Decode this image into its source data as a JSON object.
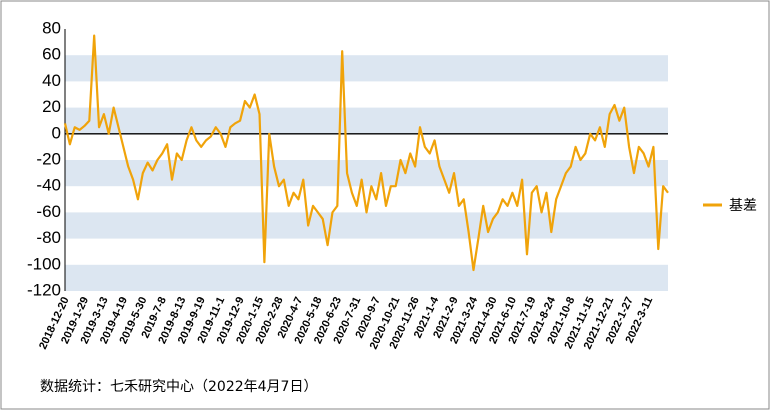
{
  "chart_data": {
    "type": "line",
    "categories": [
      "2018-12-20",
      null,
      null,
      null,
      "2019-1-29",
      null,
      null,
      null,
      "2019-3-13",
      null,
      null,
      null,
      "2019-4-19",
      null,
      null,
      null,
      "2019-5-30",
      null,
      null,
      null,
      "2019-7-8",
      null,
      null,
      null,
      "2019-8-13",
      null,
      null,
      null,
      "2019-9-19",
      null,
      null,
      null,
      "2019-11-1",
      null,
      null,
      null,
      "2019-12-9",
      null,
      null,
      null,
      "2020-1-15",
      null,
      null,
      null,
      "2020-2-28",
      null,
      null,
      null,
      "2020-4-7",
      null,
      null,
      null,
      "2020-5-18",
      null,
      null,
      null,
      "2020-6-23",
      null,
      null,
      null,
      "2020-7-31",
      null,
      null,
      null,
      "2020-9-7",
      null,
      null,
      null,
      "2020-10-21",
      null,
      null,
      null,
      "2020-11-26",
      null,
      null,
      null,
      "2021-1-4",
      null,
      null,
      null,
      "2021-2-9",
      null,
      null,
      null,
      "2021-3-24",
      null,
      null,
      null,
      "2021-4-30",
      null,
      null,
      null,
      "2021-6-10",
      null,
      null,
      null,
      "2021-7-19",
      null,
      null,
      null,
      "2021-8-24",
      null,
      null,
      null,
      "2021-10-8",
      null,
      null,
      null,
      "2021-11-15",
      null,
      null,
      null,
      "2021-12-21",
      null,
      null,
      null,
      "2022-1-27",
      null,
      null,
      null,
      "2022-3-11",
      null,
      null,
      null,
      null
    ],
    "series": [
      {
        "name": "基差",
        "color": "#f0a30a",
        "values": [
          8,
          -8,
          5,
          3,
          6,
          10,
          75,
          5,
          15,
          0,
          20,
          5,
          -10,
          -25,
          -35,
          -50,
          -30,
          -22,
          -28,
          -20,
          -15,
          -8,
          -35,
          -15,
          -20,
          -5,
          5,
          -5,
          -10,
          -5,
          -2,
          5,
          0,
          -10,
          5,
          8,
          10,
          25,
          20,
          30,
          15,
          -98,
          0,
          -25,
          -40,
          -35,
          -55,
          -45,
          -50,
          -35,
          -70,
          -55,
          -60,
          -65,
          -85,
          -60,
          -55,
          63,
          -30,
          -45,
          -55,
          -35,
          -60,
          -40,
          -50,
          -30,
          -55,
          -40,
          -40,
          -20,
          -30,
          -15,
          -25,
          5,
          -10,
          -15,
          -5,
          -25,
          -35,
          -45,
          -30,
          -55,
          -50,
          -75,
          -104,
          -80,
          -55,
          -75,
          -65,
          -60,
          -50,
          -55,
          -45,
          -55,
          -35,
          -92,
          -45,
          -40,
          -60,
          -45,
          -75,
          -50,
          -40,
          -30,
          -25,
          -10,
          -20,
          -15,
          0,
          -5,
          5,
          -10,
          15,
          22,
          10,
          20,
          -10,
          -30,
          -10,
          -15,
          -25,
          -10,
          -88,
          -40,
          -45
        ]
      }
    ],
    "ylim": [
      -120,
      80
    ],
    "yticks": [
      -120,
      -100,
      -80,
      -60,
      -40,
      -20,
      0,
      20,
      40,
      60,
      80
    ],
    "grid": "alternating-bands",
    "legend": "right",
    "footnote": "数据统计：七禾研究中心（2022年4月7日）"
  }
}
